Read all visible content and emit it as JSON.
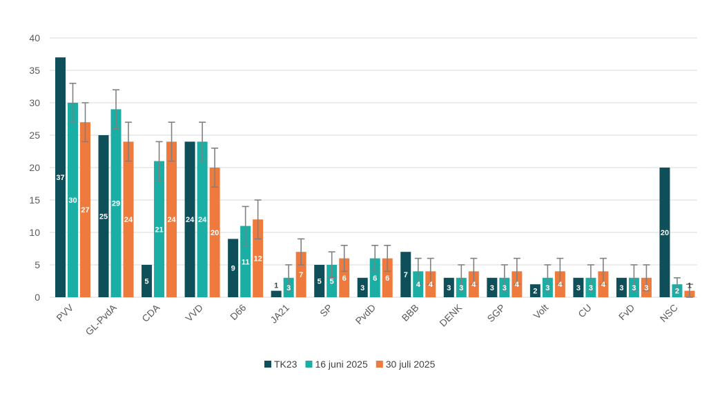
{
  "colors": {
    "TK23": "#0f4f5a",
    "juni": "#1aaea4",
    "juli": "#ee7a3d",
    "errorbar": "#808080",
    "grid": "#d9d9d9"
  },
  "chart_data": {
    "type": "bar",
    "categories": [
      "PVV",
      "GL-PvdA",
      "CDA",
      "VVD",
      "D66",
      "JA21",
      "SP",
      "PvdD",
      "BBB",
      "DENK",
      "SGP",
      "Volt",
      "CU",
      "FvD",
      "NSC"
    ],
    "series": [
      {
        "name": "TK23",
        "values": [
          37,
          25,
          5,
          24,
          9,
          1,
          5,
          3,
          7,
          3,
          3,
          2,
          3,
          3,
          20
        ]
      },
      {
        "name": "16 juni 2025",
        "values": [
          30,
          29,
          21,
          24,
          11,
          3,
          5,
          6,
          4,
          3,
          3,
          3,
          3,
          3,
          2
        ],
        "error_low": [
          27,
          26,
          18,
          21,
          8,
          1,
          3,
          4,
          2,
          1,
          1,
          1,
          1,
          1,
          1
        ],
        "error_high": [
          33,
          32,
          24,
          27,
          14,
          5,
          7,
          8,
          6,
          5,
          5,
          5,
          5,
          5,
          3
        ]
      },
      {
        "name": "30 juli 2025",
        "values": [
          27,
          24,
          24,
          20,
          12,
          7,
          6,
          6,
          4,
          4,
          4,
          4,
          4,
          3,
          1
        ],
        "error_low": [
          24,
          21,
          21,
          17,
          9,
          5,
          4,
          4,
          2,
          2,
          2,
          2,
          2,
          1,
          0
        ],
        "error_high": [
          30,
          27,
          27,
          23,
          15,
          9,
          8,
          8,
          6,
          6,
          6,
          6,
          6,
          5,
          2
        ]
      }
    ],
    "ylim": [
      0,
      40
    ],
    "yticks": [
      0,
      5,
      10,
      15,
      20,
      25,
      30,
      35,
      40
    ],
    "grid": true,
    "legend": "bottom",
    "title": "",
    "xlabel": "",
    "ylabel": ""
  }
}
